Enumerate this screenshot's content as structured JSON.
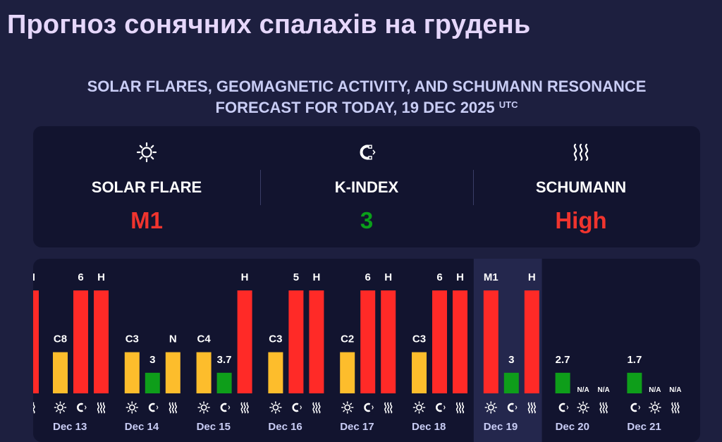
{
  "page": {
    "title": "Прогноз сонячних спалахів на грудень",
    "subtitle_line1": "SOLAR FLARES, GEOMAGNETIC ACTIVITY, AND SCHUMANN RESONANCE",
    "subtitle_line2": "FORECAST FOR TODAY, 19 DEC 2025",
    "subtitle_sup": "UTC"
  },
  "summary": {
    "solar_flare": {
      "label": "SOLAR FLARE",
      "value": "M1",
      "color": "#f0342e",
      "icon": "sun-icon"
    },
    "k_index": {
      "label": "K-INDEX",
      "value": "3",
      "color": "#0a9f1a",
      "icon": "magnet-icon"
    },
    "schumann": {
      "label": "SCHUMANN",
      "value": "High",
      "color": "#f0342e",
      "icon": "wave-icon"
    }
  },
  "colors": {
    "red": "#ff2a27",
    "yellow": "#fdbd2c",
    "green": "#0e9e1a",
    "card": "#12142f",
    "today_column": "#24274d"
  },
  "chart_data": {
    "type": "bar",
    "categories": [
      "Dec 13",
      "Dec 14",
      "Dec 15",
      "Dec 16",
      "Dec 17",
      "Dec 18",
      "Dec 19",
      "Dec 20",
      "Dec 21"
    ],
    "today": "Dec 19",
    "days": [
      {
        "date": "Dec 13",
        "bars": [
          {
            "kind": "flare",
            "label": "C8",
            "level": 0.4,
            "color": "yellow"
          },
          {
            "kind": "kindex",
            "label": "6",
            "level": 1.0,
            "color": "red"
          },
          {
            "kind": "schumann",
            "label": "H",
            "level": 1.0,
            "color": "red"
          }
        ],
        "icons": [
          "sun-icon",
          "magnet-icon",
          "wave-icon"
        ]
      },
      {
        "date": "Dec 14",
        "bars": [
          {
            "kind": "flare",
            "label": "C3",
            "level": 0.4,
            "color": "yellow"
          },
          {
            "kind": "kindex",
            "label": "3",
            "level": 0.2,
            "color": "green"
          },
          {
            "kind": "schumann",
            "label": "N",
            "level": 0.4,
            "color": "yellow"
          }
        ],
        "icons": [
          "sun-icon",
          "magnet-icon",
          "wave-icon"
        ]
      },
      {
        "date": "Dec 15",
        "bars": [
          {
            "kind": "flare",
            "label": "C4",
            "level": 0.4,
            "color": "yellow"
          },
          {
            "kind": "kindex",
            "label": "3.7",
            "level": 0.2,
            "color": "green"
          },
          {
            "kind": "schumann",
            "label": "H",
            "level": 1.0,
            "color": "red"
          }
        ],
        "icons": [
          "sun-icon",
          "magnet-icon",
          "wave-icon"
        ]
      },
      {
        "date": "Dec 16",
        "bars": [
          {
            "kind": "flare",
            "label": "C3",
            "level": 0.4,
            "color": "yellow"
          },
          {
            "kind": "kindex",
            "label": "5",
            "level": 1.0,
            "color": "red"
          },
          {
            "kind": "schumann",
            "label": "H",
            "level": 1.0,
            "color": "red"
          }
        ],
        "icons": [
          "sun-icon",
          "magnet-icon",
          "wave-icon"
        ]
      },
      {
        "date": "Dec 17",
        "bars": [
          {
            "kind": "flare",
            "label": "C2",
            "level": 0.4,
            "color": "yellow"
          },
          {
            "kind": "kindex",
            "label": "6",
            "level": 1.0,
            "color": "red"
          },
          {
            "kind": "schumann",
            "label": "H",
            "level": 1.0,
            "color": "red"
          }
        ],
        "icons": [
          "sun-icon",
          "magnet-icon",
          "wave-icon"
        ]
      },
      {
        "date": "Dec 18",
        "bars": [
          {
            "kind": "flare",
            "label": "C3",
            "level": 0.4,
            "color": "yellow"
          },
          {
            "kind": "kindex",
            "label": "6",
            "level": 1.0,
            "color": "red"
          },
          {
            "kind": "schumann",
            "label": "H",
            "level": 1.0,
            "color": "red"
          }
        ],
        "icons": [
          "sun-icon",
          "magnet-icon",
          "wave-icon"
        ]
      },
      {
        "date": "Dec 19",
        "bars": [
          {
            "kind": "flare",
            "label": "M1",
            "level": 1.0,
            "color": "red"
          },
          {
            "kind": "kindex",
            "label": "3",
            "level": 0.2,
            "color": "green"
          },
          {
            "kind": "schumann",
            "label": "H",
            "level": 1.0,
            "color": "red"
          }
        ],
        "icons": [
          "sun-icon",
          "magnet-icon",
          "wave-icon"
        ]
      },
      {
        "date": "Dec 20",
        "bars": [
          {
            "kind": "kindex",
            "label": "2.7",
            "level": 0.2,
            "color": "green"
          },
          {
            "kind": "flare",
            "label": "N/A",
            "level": 0,
            "color": "none"
          },
          {
            "kind": "schumann",
            "label": "N/A",
            "level": 0,
            "color": "none"
          }
        ],
        "icons": [
          "magnet-icon",
          "sun-icon",
          "wave-icon"
        ]
      },
      {
        "date": "Dec 21",
        "bars": [
          {
            "kind": "kindex",
            "label": "1.7",
            "level": 0.2,
            "color": "green"
          },
          {
            "kind": "flare",
            "label": "N/A",
            "level": 0,
            "color": "none"
          },
          {
            "kind": "schumann",
            "label": "N/A",
            "level": 0,
            "color": "none"
          }
        ],
        "icons": [
          "magnet-icon",
          "sun-icon",
          "wave-icon"
        ]
      }
    ],
    "partial_previous_day": {
      "label": "H",
      "level": 1.0,
      "color": "red",
      "icon": "wave-icon"
    }
  }
}
